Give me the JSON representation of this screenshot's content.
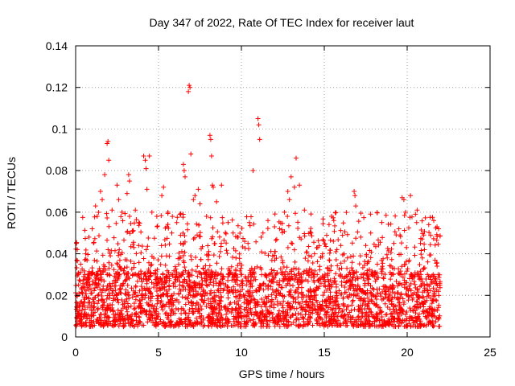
{
  "chart_data": {
    "type": "scatter",
    "title": "Day 347 of 2022, Rate Of TEC Index for receiver laut",
    "xlabel": "GPS time / hours",
    "ylabel": "ROTI / TECUs",
    "xlim": [
      0,
      25
    ],
    "ylim": [
      0,
      0.14
    ],
    "xticks": [
      0,
      5,
      10,
      15,
      20,
      25
    ],
    "xtick_labels": [
      "0",
      "5",
      "10",
      "15",
      "20",
      "25"
    ],
    "yticks": [
      0,
      0.02,
      0.04,
      0.06,
      0.08,
      0.1,
      0.12,
      0.14
    ],
    "ytick_labels": [
      "0",
      "0.02",
      "0.04",
      "0.06",
      "0.08",
      "0.1",
      "0.12",
      "0.14"
    ],
    "grid": true,
    "marker": "+",
    "color": "#ff0000",
    "series": [
      {
        "name": "ROTI",
        "points": [
          [
            0.05,
            0.045
          ],
          [
            0.1,
            0.042
          ],
          [
            0.15,
            0.03
          ],
          [
            0.3,
            0.035
          ],
          [
            0.6,
            0.04
          ],
          [
            0.8,
            0.048
          ],
          [
            1.0,
            0.052
          ],
          [
            1.2,
            0.063
          ],
          [
            1.3,
            0.058
          ],
          [
            1.5,
            0.07
          ],
          [
            1.6,
            0.066
          ],
          [
            1.75,
            0.078
          ],
          [
            1.9,
            0.093
          ],
          [
            1.95,
            0.094
          ],
          [
            2.0,
            0.085
          ],
          [
            2.2,
            0.061
          ],
          [
            2.5,
            0.073
          ],
          [
            2.6,
            0.066
          ],
          [
            2.8,
            0.06
          ],
          [
            3.2,
            0.078
          ],
          [
            3.25,
            0.075
          ],
          [
            3.1,
            0.069
          ],
          [
            3.6,
            0.061
          ],
          [
            3.8,
            0.055
          ],
          [
            4.1,
            0.087
          ],
          [
            4.2,
            0.085
          ],
          [
            4.25,
            0.081
          ],
          [
            4.3,
            0.071
          ],
          [
            4.45,
            0.087
          ],
          [
            4.6,
            0.06
          ],
          [
            4.9,
            0.058
          ],
          [
            5.2,
            0.068
          ],
          [
            5.3,
            0.072
          ],
          [
            5.5,
            0.053
          ],
          [
            5.8,
            0.05
          ],
          [
            6.1,
            0.055
          ],
          [
            6.3,
            0.059
          ],
          [
            6.5,
            0.083
          ],
          [
            6.55,
            0.08
          ],
          [
            6.6,
            0.077
          ],
          [
            6.8,
            0.118
          ],
          [
            6.85,
            0.121
          ],
          [
            6.9,
            0.12
          ],
          [
            6.95,
            0.088
          ],
          [
            7.1,
            0.066
          ],
          [
            7.2,
            0.068
          ],
          [
            7.4,
            0.071
          ],
          [
            7.5,
            0.064
          ],
          [
            7.9,
            0.058
          ],
          [
            8.1,
            0.097
          ],
          [
            8.15,
            0.095
          ],
          [
            8.2,
            0.087
          ],
          [
            8.25,
            0.073
          ],
          [
            8.3,
            0.072
          ],
          [
            8.5,
            0.065
          ],
          [
            8.8,
            0.073
          ],
          [
            9.2,
            0.055
          ],
          [
            9.5,
            0.05
          ],
          [
            9.8,
            0.048
          ],
          [
            10.2,
            0.046
          ],
          [
            10.4,
            0.045
          ],
          [
            10.7,
            0.08
          ],
          [
            11.0,
            0.105
          ],
          [
            11.05,
            0.102
          ],
          [
            11.1,
            0.095
          ],
          [
            11.3,
            0.05
          ],
          [
            11.6,
            0.056
          ],
          [
            12.0,
            0.053
          ],
          [
            12.3,
            0.052
          ],
          [
            12.6,
            0.06
          ],
          [
            12.8,
            0.07
          ],
          [
            12.9,
            0.066
          ],
          [
            13.0,
            0.077
          ],
          [
            13.2,
            0.072
          ],
          [
            13.3,
            0.086
          ],
          [
            13.5,
            0.073
          ],
          [
            13.8,
            0.061
          ],
          [
            14.2,
            0.05
          ],
          [
            14.6,
            0.043
          ],
          [
            14.9,
            0.04
          ],
          [
            15.3,
            0.037
          ],
          [
            15.7,
            0.041
          ],
          [
            16.0,
            0.044
          ],
          [
            16.4,
            0.038
          ],
          [
            16.8,
            0.07
          ],
          [
            16.85,
            0.068
          ],
          [
            16.9,
            0.063
          ],
          [
            17.2,
            0.048
          ],
          [
            17.5,
            0.044
          ],
          [
            17.8,
            0.05
          ],
          [
            18.2,
            0.035
          ],
          [
            18.5,
            0.034
          ],
          [
            18.8,
            0.038
          ],
          [
            19.2,
            0.045
          ],
          [
            19.5,
            0.052
          ],
          [
            19.7,
            0.067
          ],
          [
            19.8,
            0.066
          ],
          [
            19.9,
            0.06
          ],
          [
            20.2,
            0.068
          ],
          [
            20.5,
            0.059
          ],
          [
            20.6,
            0.061
          ],
          [
            20.8,
            0.045
          ],
          [
            21.0,
            0.049
          ],
          [
            21.3,
            0.054
          ],
          [
            21.6,
            0.056
          ],
          [
            21.8,
            0.053
          ],
          [
            21.9,
            0.052
          ]
        ],
        "dense_band": {
          "x_range": [
            0,
            22
          ],
          "y_floor": 0.003,
          "y_typical_range": [
            0.005,
            0.03
          ],
          "y_extended_range": [
            0.03,
            0.06
          ],
          "count": 3000
        }
      }
    ]
  }
}
